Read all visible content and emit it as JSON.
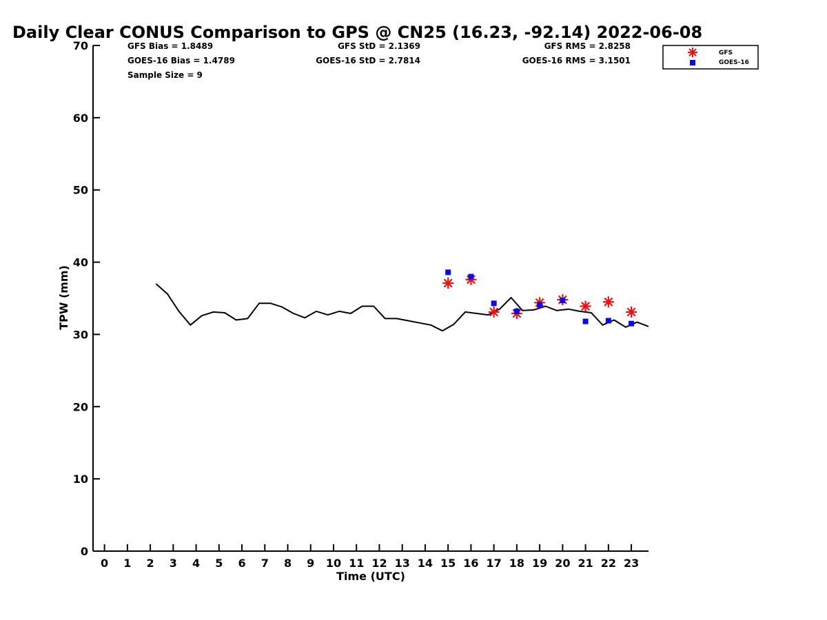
{
  "chart_data": {
    "type": "scatter",
    "title": "Daily Clear CONUS Comparison to GPS @ CN25 (16.23, -92.14) 2022-06-08",
    "xlabel": "Time (UTC)",
    "ylabel": "TPW (mm)",
    "xlim": [
      -0.5,
      23.75
    ],
    "ylim": [
      0,
      70
    ],
    "x_ticks": [
      0,
      1,
      2,
      3,
      4,
      5,
      6,
      7,
      8,
      9,
      10,
      11,
      12,
      13,
      14,
      15,
      16,
      17,
      18,
      19,
      20,
      21,
      22,
      23
    ],
    "x_tick_labels": [
      "0",
      "1",
      "2",
      "3",
      "4",
      "5",
      "6",
      "7",
      "8",
      "9",
      "10",
      "11",
      "12",
      "13",
      "14",
      "15",
      "16",
      "17",
      "18",
      "19",
      "20",
      "21",
      "22",
      "23"
    ],
    "y_ticks": [
      0,
      10,
      20,
      30,
      40,
      50,
      60,
      70
    ],
    "y_tick_labels": [
      "0",
      "10",
      "20",
      "30",
      "40",
      "50",
      "60",
      "70"
    ],
    "grid": false,
    "legend_position": "top-right",
    "stats": {
      "gfs_bias": "GFS Bias = 1.8489",
      "goes_bias": "GOES-16 Bias = 1.4789",
      "sample_size": "Sample Size = 9",
      "gfs_std": "GFS StD = 2.1369",
      "goes_std": "GOES-16 StD = 2.7814",
      "gfs_rms": "GFS RMS = 2.8258",
      "goes_rms": "GOES-16 RMS = 3.1501"
    },
    "series": [
      {
        "name": "",
        "kind": "line",
        "color": "#000000",
        "x": [
          2.25,
          2.75,
          3.25,
          3.75,
          4.25,
          4.75,
          5.25,
          5.75,
          6.25,
          6.75,
          7.25,
          7.75,
          8.25,
          8.75,
          9.25,
          9.75,
          10.25,
          10.75,
          11.25,
          11.75,
          12.25,
          12.75,
          13.25,
          13.75,
          14.25,
          14.75,
          15.25,
          15.75,
          16.25,
          16.75,
          17.25,
          17.75,
          18.25,
          18.75,
          19.25,
          19.75,
          20.25,
          20.75,
          21.25,
          21.75,
          22.25,
          22.75,
          23.25,
          23.75
        ],
        "y": [
          37.0,
          35.6,
          33.2,
          31.3,
          32.6,
          33.1,
          33.0,
          32.0,
          32.2,
          34.3,
          34.3,
          33.8,
          32.9,
          32.3,
          33.2,
          32.7,
          33.2,
          32.9,
          33.9,
          33.9,
          32.2,
          32.2,
          31.9,
          31.6,
          31.3,
          30.5,
          31.4,
          33.1,
          32.9,
          32.7,
          33.5,
          35.1,
          33.3,
          33.4,
          33.9,
          33.3,
          33.5,
          33.2,
          33.0,
          31.3,
          32.0,
          31.0,
          31.7,
          31.1
        ]
      },
      {
        "name": "GFS",
        "kind": "marker",
        "marker": "asterisk",
        "color": "#ee1111",
        "x": [
          15,
          16,
          17,
          18,
          19,
          20,
          21,
          22,
          23
        ],
        "y": [
          37.1,
          37.6,
          33.1,
          32.9,
          34.4,
          34.8,
          33.9,
          34.5,
          33.1
        ]
      },
      {
        "name": "GOES-16",
        "kind": "marker",
        "marker": "square",
        "color": "#0a0ae6",
        "x": [
          15,
          16,
          17,
          18,
          19,
          20,
          21,
          22,
          23
        ],
        "y": [
          38.6,
          38.0,
          34.3,
          33.2,
          34.1,
          34.7,
          31.8,
          31.9,
          31.5
        ]
      }
    ]
  }
}
